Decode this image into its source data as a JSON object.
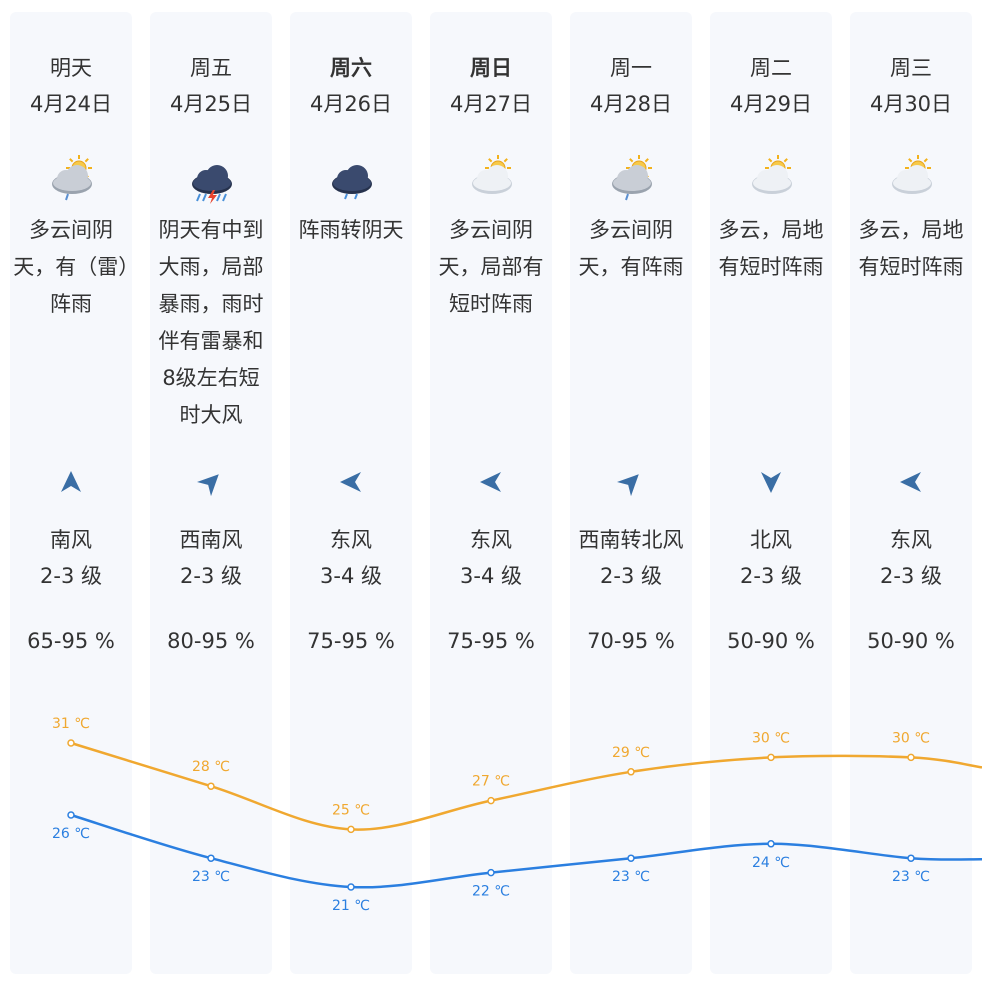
{
  "days": [
    {
      "day": "明天",
      "date": "4月24日",
      "bold": false,
      "icon": "cloudy-sun-rain-icon",
      "desc": "多云间阴天，有（雷）阵雨",
      "wind_dir": "南风",
      "wind_level": "2-3 级",
      "wind_arrow": "wind-arrow-up-icon",
      "humidity": "65-95 %",
      "high": "31 ℃",
      "low": "26 ℃"
    },
    {
      "day": "周五",
      "date": "4月25日",
      "bold": false,
      "icon": "thunderstorm-icon",
      "desc": "阴天有中到大雨，局部暴雨，雨时伴有雷暴和8级左右短时大风",
      "wind_dir": "西南风",
      "wind_level": "2-3 级",
      "wind_arrow": "wind-arrow-upright-icon",
      "humidity": "80-95 %",
      "high": "28 ℃",
      "low": "23 ℃"
    },
    {
      "day": "周六",
      "date": "4月26日",
      "bold": true,
      "icon": "rain-cloud-icon",
      "desc": "阵雨转阴天",
      "wind_dir": "东风",
      "wind_level": "3-4 级",
      "wind_arrow": "wind-arrow-left-icon",
      "humidity": "75-95 %",
      "high": "25 ℃",
      "low": "21 ℃"
    },
    {
      "day": "周日",
      "date": "4月27日",
      "bold": true,
      "icon": "partly-cloudy-icon",
      "desc": "多云间阴天，局部有短时阵雨",
      "wind_dir": "东风",
      "wind_level": "3-4 级",
      "wind_arrow": "wind-arrow-left-icon",
      "humidity": "75-95 %",
      "high": "27 ℃",
      "low": "22 ℃"
    },
    {
      "day": "周一",
      "date": "4月28日",
      "bold": false,
      "icon": "cloudy-sun-rain-icon",
      "desc": "多云间阴天，有阵雨",
      "wind_dir": "西南转北风",
      "wind_level": "2-3 级",
      "wind_arrow": "wind-arrow-upright-icon",
      "humidity": "70-95 %",
      "high": "29 ℃",
      "low": "23 ℃"
    },
    {
      "day": "周二",
      "date": "4月29日",
      "bold": false,
      "icon": "partly-cloudy-icon",
      "desc": "多云，局地有短时阵雨",
      "wind_dir": "北风",
      "wind_level": "2-3 级",
      "wind_arrow": "wind-arrow-down-icon",
      "humidity": "50-90 %",
      "high": "30 ℃",
      "low": "24 ℃"
    },
    {
      "day": "周三",
      "date": "4月30日",
      "bold": false,
      "icon": "partly-cloudy-icon",
      "desc": "多云，局地有短时阵雨",
      "wind_dir": "东风",
      "wind_level": "2-3 级",
      "wind_arrow": "wind-arrow-left-icon",
      "humidity": "50-90 %",
      "high": "30 ℃",
      "low": "23 ℃"
    }
  ],
  "colors": {
    "high": "#f0a830",
    "low": "#2b7fe0",
    "arrow": "#3a6ea5",
    "column_bg": "#f6f8fc"
  },
  "chart_data": {
    "type": "line",
    "categories": [
      "4月24日",
      "4月25日",
      "4月26日",
      "4月27日",
      "4月28日",
      "4月29日",
      "4月30日"
    ],
    "unit": "℃",
    "series": [
      {
        "values": [
          31,
          28,
          25,
          27,
          29,
          30,
          30
        ]
      },
      {
        "values": [
          26,
          23,
          21,
          22,
          23,
          24,
          23
        ]
      }
    ]
  }
}
